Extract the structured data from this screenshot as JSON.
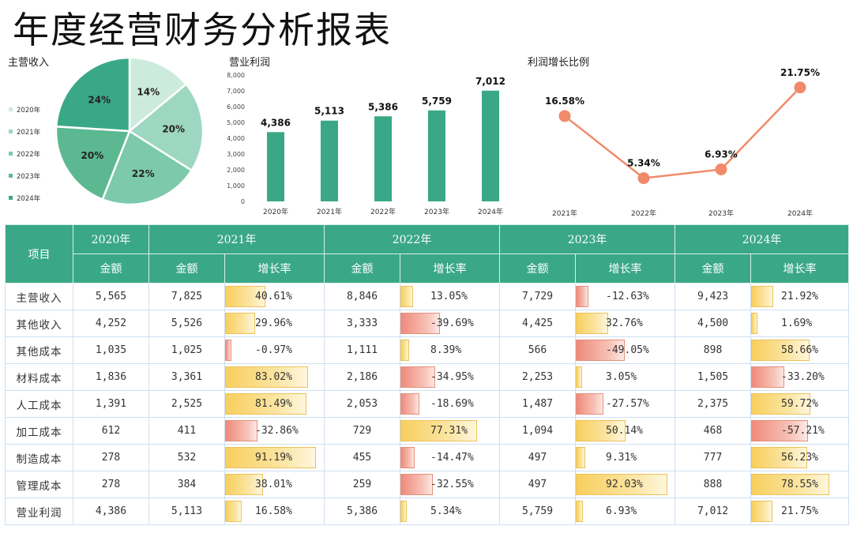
{
  "title": "年度经营财务分析报表",
  "colors": {
    "accent": "#3aa886",
    "line": "#f08a6a",
    "bar": "#3aa886"
  },
  "chart_data": [
    {
      "type": "pie",
      "title": "主营收入",
      "categories": [
        "2020年",
        "2021年",
        "2022年",
        "2023年",
        "2024年"
      ],
      "values": [
        14,
        20,
        22,
        20,
        24
      ],
      "labels": [
        "14%",
        "20%",
        "22%",
        "20%",
        "24%"
      ],
      "colors": [
        "#cdebdd",
        "#9dd7c1",
        "#7cc9ac",
        "#5cb891",
        "#3aa886"
      ]
    },
    {
      "type": "bar",
      "title": "营业利润",
      "categories": [
        "2020年",
        "2021年",
        "2022年",
        "2023年",
        "2024年"
      ],
      "values": [
        4386,
        5113,
        5386,
        5759,
        7012
      ],
      "labels": [
        "4,386",
        "5,113",
        "5,386",
        "5,759",
        "7,012"
      ],
      "ylim": [
        0,
        8000
      ],
      "yticks": [
        "0",
        "1,000",
        "2,000",
        "3,000",
        "4,000",
        "5,000",
        "6,000",
        "7,000",
        "8,000"
      ]
    },
    {
      "type": "line",
      "title": "利润增长比例",
      "categories": [
        "2021年",
        "2022年",
        "2023年",
        "2024年"
      ],
      "values": [
        16.58,
        5.34,
        6.93,
        21.75
      ],
      "labels": [
        "16.58%",
        "5.34%",
        "6.93%",
        "21.75%"
      ],
      "ylim": [
        0,
        25
      ]
    }
  ],
  "table": {
    "header_item": "项目",
    "years": [
      "2020年",
      "2021年",
      "2022年",
      "2023年",
      "2024年"
    ],
    "amount_label": "金额",
    "rate_label": "增长率",
    "rows": [
      {
        "item": "主营收入",
        "y2020": "5,565",
        "y2021": "7,825",
        "r2021": "40.61%",
        "y2022": "8,846",
        "r2022": "13.05%",
        "y2023": "7,729",
        "r2023": "-12.63%",
        "y2024": "9,423",
        "r2024": "21.92%"
      },
      {
        "item": "其他收入",
        "y2020": "4,252",
        "y2021": "5,526",
        "r2021": "29.96%",
        "y2022": "3,333",
        "r2022": "-39.69%",
        "y2023": "4,425",
        "r2023": "32.76%",
        "y2024": "4,500",
        "r2024": "1.69%"
      },
      {
        "item": "其他成本",
        "y2020": "1,035",
        "y2021": "1,025",
        "r2021": "-0.97%",
        "y2022": "1,111",
        "r2022": "8.39%",
        "y2023": "566",
        "r2023": "-49.05%",
        "y2024": "898",
        "r2024": "58.66%"
      },
      {
        "item": "材料成本",
        "y2020": "1,836",
        "y2021": "3,361",
        "r2021": "83.02%",
        "y2022": "2,186",
        "r2022": "-34.95%",
        "y2023": "2,253",
        "r2023": "3.05%",
        "y2024": "1,505",
        "r2024": "-33.20%"
      },
      {
        "item": "人工成本",
        "y2020": "1,391",
        "y2021": "2,525",
        "r2021": "81.49%",
        "y2022": "2,053",
        "r2022": "-18.69%",
        "y2023": "1,487",
        "r2023": "-27.57%",
        "y2024": "2,375",
        "r2024": "59.72%"
      },
      {
        "item": "加工成本",
        "y2020": "612",
        "y2021": "411",
        "r2021": "-32.86%",
        "y2022": "729",
        "r2022": "77.31%",
        "y2023": "1,094",
        "r2023": "50.14%",
        "y2024": "468",
        "r2024": "-57.21%"
      },
      {
        "item": "制造成本",
        "y2020": "278",
        "y2021": "532",
        "r2021": "91.19%",
        "y2022": "455",
        "r2022": "-14.47%",
        "y2023": "497",
        "r2023": "9.31%",
        "y2024": "777",
        "r2024": "56.23%"
      },
      {
        "item": "管理成本",
        "y2020": "278",
        "y2021": "384",
        "r2021": "38.01%",
        "y2022": "259",
        "r2022": "-32.55%",
        "y2023": "497",
        "r2023": "92.03%",
        "y2024": "888",
        "r2024": "78.55%"
      },
      {
        "item": "营业利润",
        "y2020": "4,386",
        "y2021": "5,113",
        "r2021": "16.58%",
        "y2022": "5,386",
        "r2022": "5.34%",
        "y2023": "5,759",
        "r2023": "6.93%",
        "y2024": "7,012",
        "r2024": "21.75%"
      }
    ]
  }
}
